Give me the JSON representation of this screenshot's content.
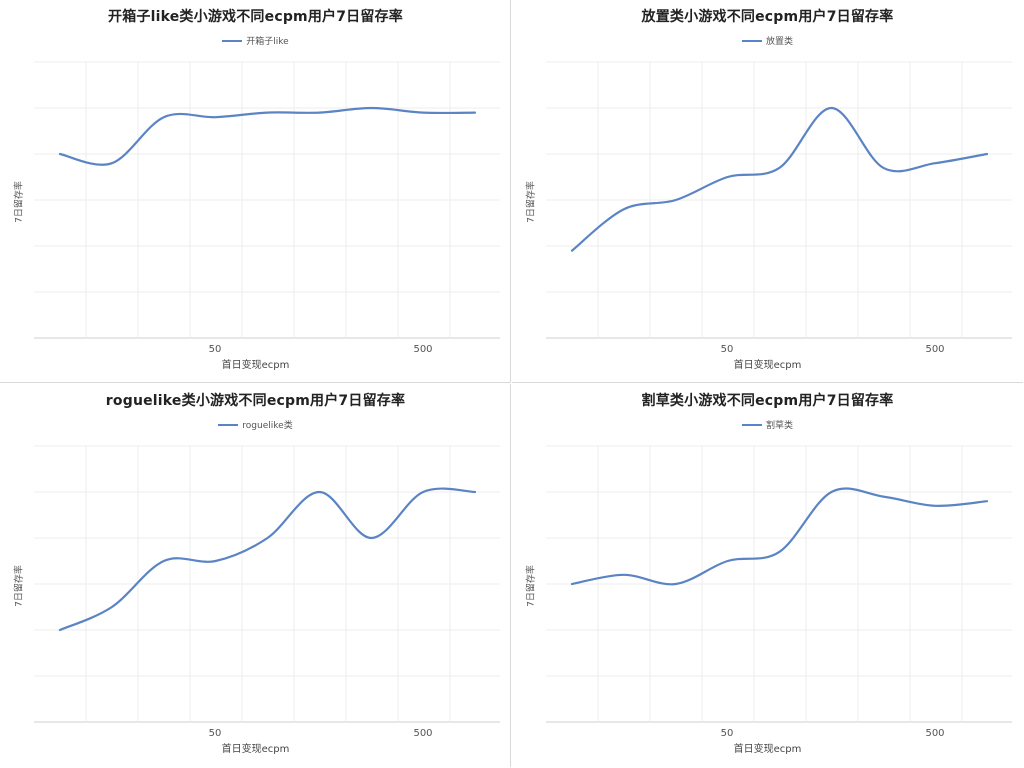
{
  "colors": {
    "series": "#5b84c4",
    "grid": "#eeeeee",
    "axis": "#cfcfcf",
    "divider": "#d9d9d9"
  },
  "charts": [
    {
      "title": "开箱子like类小游戏不同ecpm用户7日留存率",
      "legend": "开箱子like",
      "ylabel": "7日留存率",
      "xlabel": "首日变现ecpm",
      "ticks": [
        "50",
        "500"
      ]
    },
    {
      "title": "放置类小游戏不同ecpm用户7日留存率",
      "legend": "放置类",
      "ylabel": "7日留存率",
      "xlabel": "首日变现ecpm",
      "ticks": [
        "50",
        "500"
      ]
    },
    {
      "title": "roguelike类小游戏不同ecpm用户7日留存率",
      "legend": "roguelike类",
      "ylabel": "7日留存率",
      "xlabel": "首日变现ecpm",
      "ticks": [
        "50",
        "500"
      ]
    },
    {
      "title": "割草类小游戏不同ecpm用户7日留存率",
      "legend": "割草类",
      "ylabel": "7日留存率",
      "xlabel": "首日变现ecpm",
      "ticks": [
        "50",
        "500"
      ]
    }
  ],
  "chart_data": [
    {
      "type": "line",
      "title": "开箱子like类小游戏不同ecpm用户7日留存率",
      "xlabel": "首日变现ecpm",
      "ylabel": "7日留存率",
      "x_scale": "log",
      "x_ticks": [
        50,
        500
      ],
      "grid": true,
      "legend_position": "top-center",
      "series": [
        {
          "name": "开箱子like",
          "values": [
            4.0,
            3.8,
            4.8,
            4.8,
            4.9,
            4.9,
            5.0,
            4.9,
            4.9
          ]
        }
      ]
    },
    {
      "type": "line",
      "title": "放置类小游戏不同ecpm用户7日留存率",
      "xlabel": "首日变现ecpm",
      "ylabel": "7日留存率",
      "x_scale": "log",
      "x_ticks": [
        50,
        500
      ],
      "grid": true,
      "legend_position": "top-center",
      "series": [
        {
          "name": "放置类",
          "values": [
            1.9,
            2.8,
            3.0,
            3.5,
            3.7,
            5.0,
            3.7,
            3.8,
            4.0
          ]
        }
      ]
    },
    {
      "type": "line",
      "title": "roguelike类小游戏不同ecpm用户7日留存率",
      "xlabel": "首日变现ecpm",
      "ylabel": "7日留存率",
      "x_scale": "log",
      "x_ticks": [
        50,
        500
      ],
      "grid": true,
      "legend_position": "top-center",
      "series": [
        {
          "name": "roguelike类",
          "values": [
            2.0,
            2.5,
            3.5,
            3.5,
            4.0,
            5.0,
            4.0,
            5.0,
            5.0
          ]
        }
      ]
    },
    {
      "type": "line",
      "title": "割草类小游戏不同ecpm用户7日留存率",
      "xlabel": "首日变现ecpm",
      "ylabel": "7日留存率",
      "x_scale": "log",
      "x_ticks": [
        50,
        500
      ],
      "grid": true,
      "legend_position": "top-center",
      "series": [
        {
          "name": "割草类",
          "values": [
            3.0,
            3.2,
            3.0,
            3.5,
            3.7,
            5.0,
            4.9,
            4.7,
            4.8
          ]
        }
      ]
    }
  ]
}
